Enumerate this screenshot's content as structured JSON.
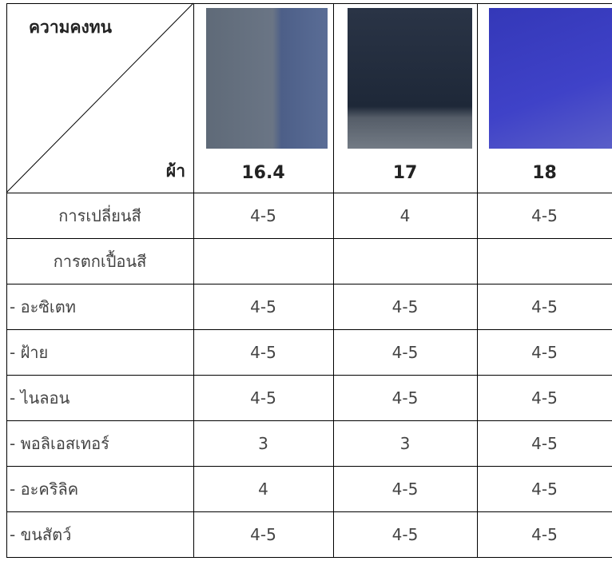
{
  "header": {
    "corner_top": "ความคงทน",
    "corner_bottom": "ผ้า",
    "fabrics": [
      "16.4",
      "17",
      "18"
    ]
  },
  "rows": [
    {
      "label": "การเปลี่ยนสี",
      "values": [
        "4-5",
        "4",
        "4-5"
      ]
    },
    {
      "label": "การตกเปื้อนสี"
    },
    {
      "label": "- อะซิเตท",
      "values": [
        "4-5",
        "4-5",
        "4-5"
      ]
    },
    {
      "label": "- ฝ้าย",
      "values": [
        "4-5",
        "4-5",
        "4-5"
      ]
    },
    {
      "label": "- ไนลอน",
      "values": [
        "4-5",
        "4-5",
        "4-5"
      ]
    },
    {
      "label": "- พอลิเอสเทอร์",
      "values": [
        "3",
        "3",
        "4-5"
      ]
    },
    {
      "label": "- อะคริลิค",
      "values": [
        "4",
        "4-5",
        "4-5"
      ]
    },
    {
      "label": "- ขนสัตว์",
      "values": [
        "4-5",
        "4-5",
        "4-5"
      ]
    }
  ]
}
